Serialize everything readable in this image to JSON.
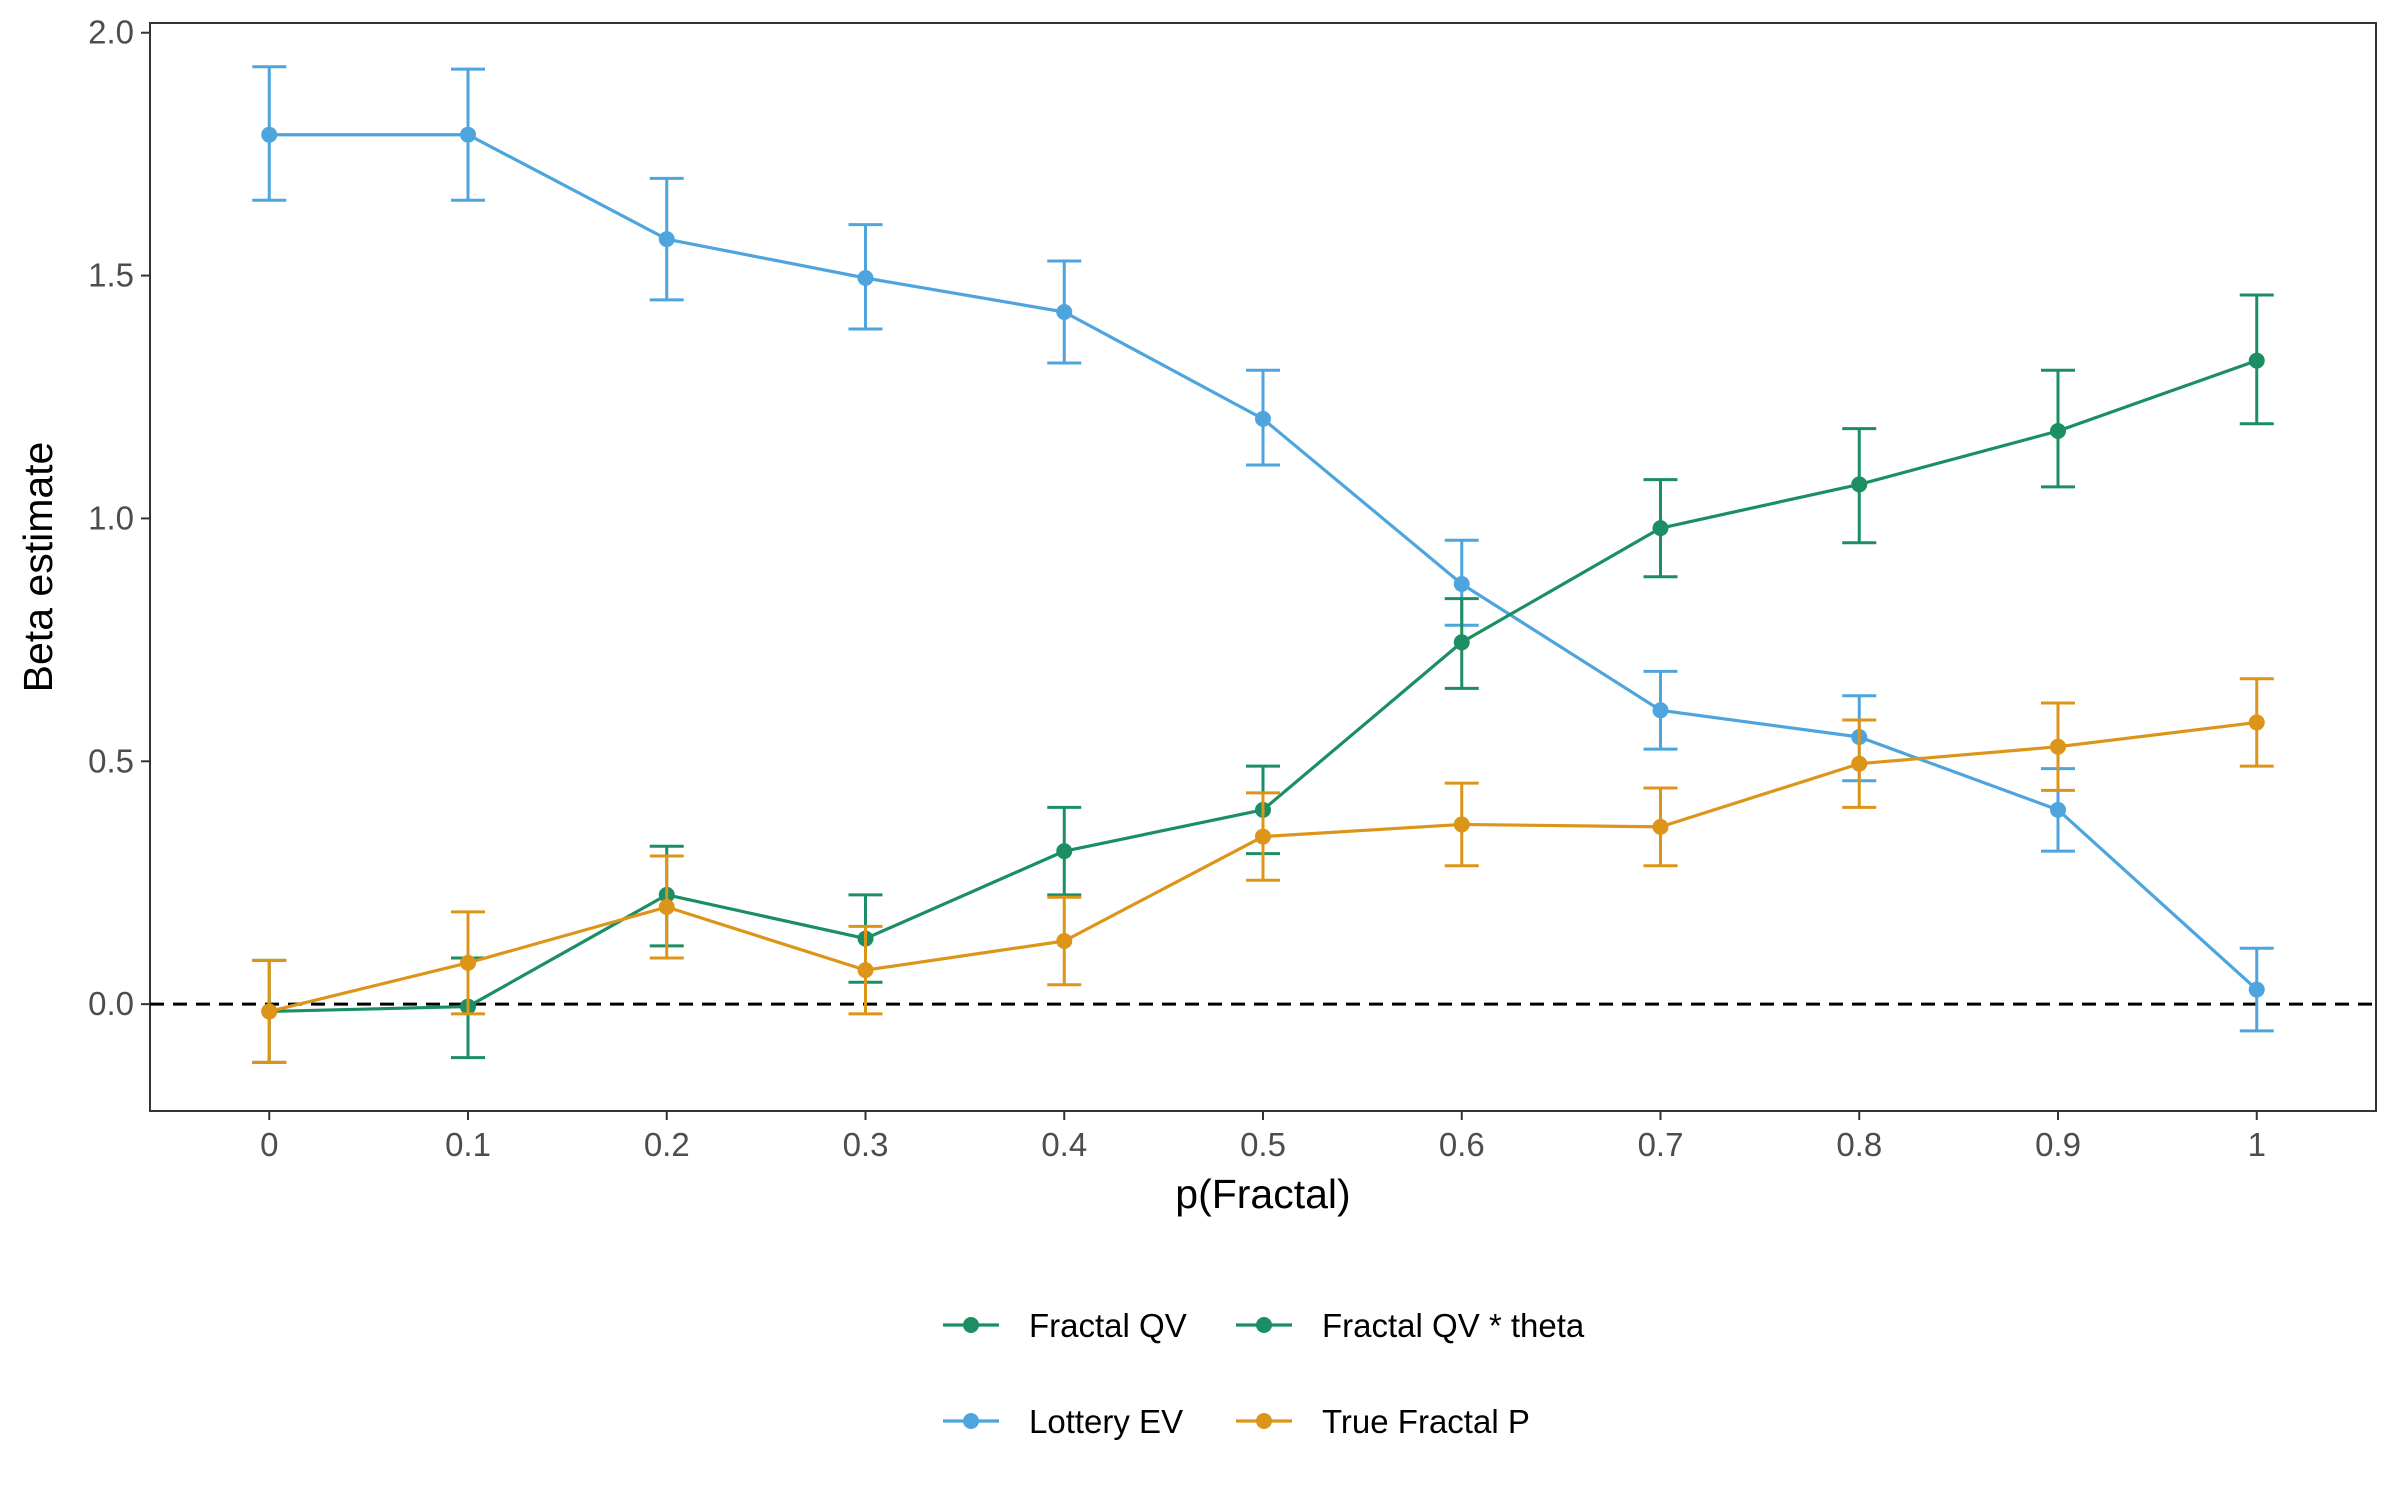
{
  "chart_data": {
    "type": "line",
    "xlabel": "p(Fractal)",
    "ylabel": "Beta estimate",
    "x": [
      0,
      0.1,
      0.2,
      0.3,
      0.4,
      0.5,
      0.6,
      0.7,
      0.8,
      0.9,
      1
    ],
    "x_tick_labels": [
      "0",
      "0.1",
      "0.2",
      "0.3",
      "0.4",
      "0.5",
      "0.6",
      "0.7",
      "0.8",
      "0.9",
      "1"
    ],
    "xlim": [
      -0.06,
      1.06
    ],
    "y_ticks": [
      0.0,
      0.5,
      1.0,
      1.5,
      2.0
    ],
    "y_tick_labels": [
      "0.0",
      "0.5",
      "1.0",
      "1.5",
      "2.0"
    ],
    "ylim": [
      -0.22,
      2.02
    ],
    "reference_line": {
      "y": 0,
      "style": "dashed",
      "color": "#000000"
    },
    "grid": false,
    "legend_position": "bottom",
    "series": [
      {
        "name": "Lottery EV",
        "color": "#4ea5dd",
        "values": [
          1.79,
          1.79,
          1.575,
          1.495,
          1.425,
          1.205,
          0.865,
          0.605,
          0.55,
          0.4,
          0.03
        ],
        "error_low": [
          1.655,
          1.655,
          1.45,
          1.39,
          1.32,
          1.11,
          0.78,
          0.525,
          0.46,
          0.315,
          -0.055
        ],
        "error_high": [
          1.93,
          1.925,
          1.7,
          1.605,
          1.53,
          1.305,
          0.955,
          0.685,
          0.635,
          0.485,
          0.115
        ]
      },
      {
        "name": "Fractal QV * theta",
        "color": "#1b8f63",
        "values": [
          -0.015,
          -0.005,
          0.225,
          0.135,
          0.315,
          0.4,
          0.745,
          0.98,
          1.07,
          1.18,
          1.325
        ],
        "error_low": [
          -0.12,
          -0.11,
          0.12,
          0.045,
          0.225,
          0.31,
          0.65,
          0.88,
          0.95,
          1.065,
          1.195
        ],
        "error_high": [
          0.09,
          0.095,
          0.325,
          0.225,
          0.405,
          0.49,
          0.835,
          1.08,
          1.185,
          1.305,
          1.46
        ]
      },
      {
        "name": "True Fractal P",
        "color": "#dc9518",
        "values": [
          -0.015,
          0.085,
          0.2,
          0.07,
          0.13,
          0.345,
          0.37,
          0.365,
          0.495,
          0.53,
          0.58
        ],
        "error_low": [
          -0.12,
          -0.02,
          0.095,
          -0.02,
          0.04,
          0.255,
          0.285,
          0.285,
          0.405,
          0.44,
          0.49
        ],
        "error_high": [
          0.09,
          0.19,
          0.305,
          0.16,
          0.22,
          0.435,
          0.455,
          0.445,
          0.585,
          0.62,
          0.67
        ]
      }
    ],
    "legend": [
      {
        "label": "Fractal QV",
        "color": "#1b8f63",
        "row": 0,
        "col": 0
      },
      {
        "label": "Fractal QV * theta",
        "color": "#1b8f63",
        "row": 0,
        "col": 1
      },
      {
        "label": "Lottery EV",
        "color": "#4ea5dd",
        "row": 1,
        "col": 0
      },
      {
        "label": "True Fractal P",
        "color": "#dc9518",
        "row": 1,
        "col": 1
      }
    ]
  }
}
